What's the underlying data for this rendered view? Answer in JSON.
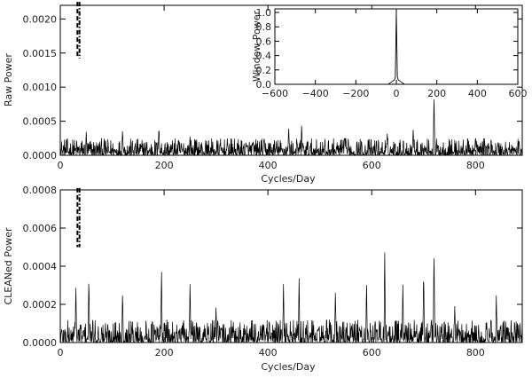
{
  "chart_data": [
    {
      "type": "line",
      "panel": "top",
      "xlabel": "Cycles/Day",
      "ylabel": "Raw  Power",
      "xlim": [
        0,
        890
      ],
      "ylim": [
        0,
        0.0022
      ],
      "xticks": [
        0,
        200,
        400,
        600,
        800
      ],
      "yticks": [
        0.0,
        0.0005,
        0.001,
        0.0015,
        0.002
      ],
      "ytick_labels": [
        "0.0000",
        "0.0005",
        "0.0010",
        "0.0015",
        "0.0020"
      ],
      "noise_level": 0.00025,
      "peaks": [
        {
          "x": 50,
          "y": 0.00035
        },
        {
          "x": 120,
          "y": 0.0004
        },
        {
          "x": 190,
          "y": 0.00045
        },
        {
          "x": 250,
          "y": 0.0003
        },
        {
          "x": 440,
          "y": 0.00045
        },
        {
          "x": 465,
          "y": 0.00048
        },
        {
          "x": 550,
          "y": 0.0003
        },
        {
          "x": 630,
          "y": 0.00035
        },
        {
          "x": 680,
          "y": 0.00042
        },
        {
          "x": 720,
          "y": 0.00095
        },
        {
          "x": 800,
          "y": 0.0003
        }
      ],
      "marker_lines": [
        {
          "x": 33,
          "y_top": 0.00225,
          "y_bottom": 0.00142,
          "style": "dashed"
        },
        {
          "x": 37,
          "y_top": 0.00225,
          "y_bottom": 0.00142,
          "style": "dash-dot"
        }
      ],
      "inset": {
        "type": "line",
        "ylabel": "Window  Power",
        "xlim": [
          -600,
          600
        ],
        "ylim": [
          0,
          1.05
        ],
        "xticks": [
          -600,
          -400,
          -200,
          0,
          200,
          400,
          600
        ],
        "yticks": [
          0.0,
          0.2,
          0.4,
          0.6,
          0.8,
          1.0
        ],
        "ytick_labels": [
          "0.0",
          "0.2",
          "0.4",
          "0.6",
          "0.8",
          "1.0"
        ],
        "x": [
          -600,
          -40,
          -25,
          -10,
          -5,
          0,
          5,
          10,
          25,
          40,
          600
        ],
        "y": [
          0,
          0,
          0.03,
          0.06,
          0.1,
          1.0,
          0.1,
          0.06,
          0.03,
          0,
          0
        ]
      }
    },
    {
      "type": "line",
      "panel": "bottom",
      "xlabel": "Cycles/Day",
      "ylabel": "CLEANed  Power",
      "xlim": [
        0,
        890
      ],
      "ylim": [
        0,
        0.0008
      ],
      "xticks": [
        0,
        200,
        400,
        600,
        800
      ],
      "yticks": [
        0.0,
        0.0002,
        0.0004,
        0.0006,
        0.0008
      ],
      "ytick_labels": [
        "0.0000",
        "0.0002",
        "0.0004",
        "0.0006",
        "0.0008"
      ],
      "noise_level": 0.00012,
      "peaks": [
        {
          "x": 30,
          "y": 0.00031
        },
        {
          "x": 55,
          "y": 0.00036
        },
        {
          "x": 120,
          "y": 0.00028
        },
        {
          "x": 195,
          "y": 0.0004
        },
        {
          "x": 250,
          "y": 0.00033
        },
        {
          "x": 300,
          "y": 0.0002
        },
        {
          "x": 430,
          "y": 0.00032
        },
        {
          "x": 460,
          "y": 0.00035
        },
        {
          "x": 530,
          "y": 0.00028
        },
        {
          "x": 590,
          "y": 0.00033
        },
        {
          "x": 625,
          "y": 0.00049
        },
        {
          "x": 660,
          "y": 0.00031
        },
        {
          "x": 700,
          "y": 0.0004
        },
        {
          "x": 720,
          "y": 0.00051
        },
        {
          "x": 760,
          "y": 0.0002
        },
        {
          "x": 840,
          "y": 0.00025
        }
      ],
      "marker_lines": [
        {
          "x": 33,
          "y_top": 0.00081,
          "y_bottom": 0.0005,
          "style": "dashed"
        },
        {
          "x": 37,
          "y_top": 0.00081,
          "y_bottom": 0.0005,
          "style": "dash-dot"
        }
      ]
    }
  ]
}
